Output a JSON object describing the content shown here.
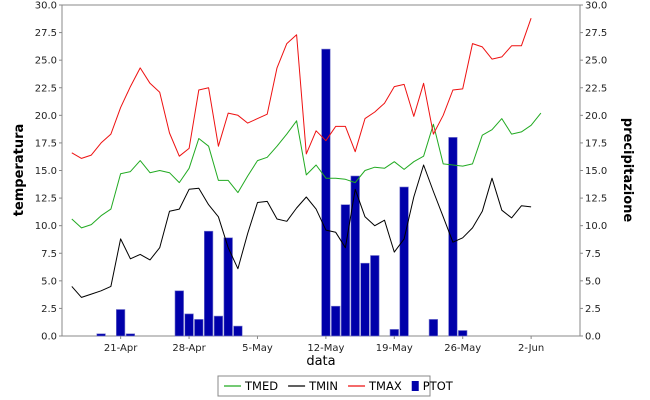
{
  "chart_data": {
    "type": "line",
    "title": "",
    "xlabel": "data",
    "ylabel_left": "temperatura",
    "ylabel_right": "precipitazione",
    "ylim": [
      0,
      30
    ],
    "yticks": [
      "0.0",
      "2.5",
      "5.0",
      "7.5",
      "10.0",
      "12.5",
      "15.0",
      "17.5",
      "20.0",
      "22.5",
      "25.0",
      "27.5",
      "30.0"
    ],
    "xlim": [
      "2017-04-15",
      "2017-06-07"
    ],
    "xticks": [
      {
        "date": "2017-04-21",
        "label": "21-Apr"
      },
      {
        "date": "2017-04-28",
        "label": "28-Apr"
      },
      {
        "date": "2017-05-05",
        "label": "5-May"
      },
      {
        "date": "2017-05-12",
        "label": "12-May"
      },
      {
        "date": "2017-05-19",
        "label": "19-May"
      },
      {
        "date": "2017-05-26",
        "label": "26-May"
      },
      {
        "date": "2017-06-02",
        "label": "2-Jun"
      }
    ],
    "grid": false,
    "legend_position": "bottom",
    "series": [
      {
        "name": "TMED",
        "type": "line",
        "color": "#22aa22",
        "start_date": "2017-04-16",
        "values": [
          10.6,
          9.8,
          10.1,
          10.9,
          11.5,
          14.7,
          14.9,
          15.9,
          14.8,
          15.0,
          14.8,
          13.9,
          15.2,
          17.9,
          17.2,
          14.1,
          14.1,
          13.0,
          14.5,
          15.9,
          16.2,
          17.2,
          18.3,
          19.5,
          14.6,
          15.5,
          14.3,
          14.3,
          14.2,
          13.9,
          15.0,
          15.3,
          15.2,
          15.8,
          15.1,
          15.8,
          16.3,
          19.2,
          15.6,
          15.5,
          15.4,
          15.6,
          18.2,
          18.7,
          19.7,
          18.3,
          18.5,
          19.1,
          20.2
        ]
      },
      {
        "name": "TMIN",
        "type": "line",
        "color": "#000000",
        "start_date": "2017-04-16",
        "values": [
          4.5,
          3.5,
          3.8,
          4.1,
          4.5,
          8.8,
          7.0,
          7.4,
          6.9,
          8.0,
          11.3,
          11.5,
          13.3,
          13.4,
          11.9,
          10.8,
          8.0,
          6.1,
          9.3,
          12.1,
          12.2,
          10.6,
          10.4,
          11.6,
          12.6,
          11.5,
          9.6,
          9.4,
          8.0,
          13.3,
          10.8,
          10.0,
          10.5,
          7.6,
          8.8,
          12.6,
          15.5,
          13.1,
          10.8,
          8.5,
          8.9,
          9.8,
          11.3,
          14.3,
          11.4,
          10.7,
          11.8,
          11.7
        ]
      },
      {
        "name": "TMAX",
        "type": "line",
        "color": "#ee1111",
        "start_date": "2017-04-16",
        "values": [
          16.6,
          16.1,
          16.4,
          17.5,
          18.3,
          20.7,
          22.6,
          24.3,
          22.9,
          22.1,
          18.4,
          16.3,
          17.0,
          22.3,
          22.5,
          17.2,
          20.2,
          20.0,
          19.3,
          19.7,
          20.1,
          24.3,
          26.5,
          27.3,
          16.5,
          18.6,
          17.7,
          19.0,
          19.0,
          16.7,
          19.7,
          20.3,
          21.1,
          22.6,
          22.8,
          19.9,
          22.9,
          18.3,
          20.0,
          22.3,
          22.4,
          26.5,
          26.2,
          25.1,
          25.3,
          26.3,
          26.3,
          28.8
        ]
      },
      {
        "name": "PTOT",
        "type": "bar",
        "color": "#0000aa",
        "axis": "right",
        "x": [
          "2017-04-19",
          "2017-04-21",
          "2017-04-22",
          "2017-04-27",
          "2017-04-28",
          "2017-04-29",
          "2017-04-30",
          "2017-05-01",
          "2017-05-02",
          "2017-05-03",
          "2017-05-12",
          "2017-05-13",
          "2017-05-14",
          "2017-05-15",
          "2017-05-16",
          "2017-05-17",
          "2017-05-19",
          "2017-05-20",
          "2017-05-23",
          "2017-05-25",
          "2017-05-26"
        ],
        "values": [
          0.2,
          2.4,
          0.2,
          4.1,
          2.0,
          1.5,
          9.5,
          1.8,
          8.9,
          0.9,
          26.0,
          2.7,
          11.9,
          14.5,
          6.6,
          7.3,
          0.6,
          13.5,
          1.5,
          18.0,
          0.5
        ]
      }
    ]
  }
}
